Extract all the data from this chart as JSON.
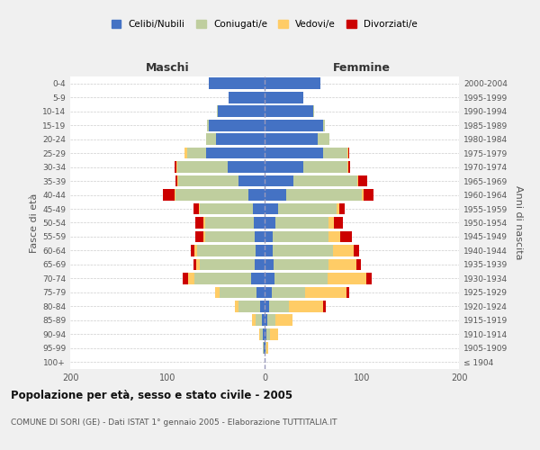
{
  "age_groups": [
    "100+",
    "95-99",
    "90-94",
    "85-89",
    "80-84",
    "75-79",
    "70-74",
    "65-69",
    "60-64",
    "55-59",
    "50-54",
    "45-49",
    "40-44",
    "35-39",
    "30-34",
    "25-29",
    "20-24",
    "15-19",
    "10-14",
    "5-9",
    "0-4"
  ],
  "birth_years": [
    "≤ 1904",
    "1905-1909",
    "1910-1914",
    "1915-1919",
    "1920-1924",
    "1925-1929",
    "1930-1934",
    "1935-1939",
    "1940-1944",
    "1945-1949",
    "1950-1954",
    "1955-1959",
    "1960-1964",
    "1965-1969",
    "1970-1974",
    "1975-1979",
    "1980-1984",
    "1985-1989",
    "1990-1994",
    "1995-1999",
    "2000-2004"
  ],
  "maschi": {
    "celibi": [
      0,
      1,
      2,
      3,
      5,
      8,
      14,
      10,
      9,
      10,
      11,
      12,
      17,
      27,
      38,
      60,
      50,
      57,
      48,
      37,
      57
    ],
    "coniugati": [
      0,
      1,
      3,
      6,
      22,
      38,
      58,
      57,
      60,
      51,
      50,
      55,
      75,
      62,
      52,
      20,
      10,
      2,
      1,
      0,
      0
    ],
    "vedovi": [
      0,
      0,
      1,
      4,
      4,
      5,
      7,
      3,
      3,
      2,
      2,
      1,
      1,
      1,
      1,
      2,
      0,
      0,
      0,
      0,
      0
    ],
    "divorziati": [
      0,
      0,
      0,
      0,
      0,
      0,
      5,
      3,
      4,
      8,
      8,
      5,
      12,
      2,
      2,
      0,
      0,
      0,
      0,
      0,
      0
    ]
  },
  "femmine": {
    "nubili": [
      0,
      1,
      2,
      3,
      5,
      7,
      10,
      9,
      8,
      8,
      11,
      14,
      22,
      30,
      40,
      60,
      55,
      60,
      50,
      40,
      57
    ],
    "coniugate": [
      0,
      1,
      4,
      8,
      20,
      35,
      55,
      57,
      62,
      58,
      55,
      60,
      78,
      65,
      45,
      25,
      12,
      2,
      1,
      0,
      0
    ],
    "vedove": [
      0,
      2,
      8,
      18,
      35,
      42,
      40,
      28,
      22,
      12,
      5,
      3,
      2,
      1,
      1,
      1,
      0,
      0,
      0,
      0,
      0
    ],
    "divorziate": [
      0,
      0,
      0,
      0,
      3,
      3,
      5,
      5,
      5,
      12,
      10,
      5,
      10,
      10,
      2,
      1,
      0,
      0,
      0,
      0,
      0
    ]
  },
  "colors": {
    "celibi": "#4472C4",
    "coniugati": "#BFCE9E",
    "vedovi": "#FFCC66",
    "divorziati": "#CC0000"
  },
  "title": "Popolazione per età, sesso e stato civile - 2005",
  "subtitle": "COMUNE DI SORI (GE) - Dati ISTAT 1° gennaio 2005 - Elaborazione TUTTITALIA.IT",
  "ylabel_left": "Fasce di età",
  "ylabel_right": "Anni di nascita",
  "xlabel_left": "Maschi",
  "xlabel_right": "Femmine",
  "xlim": 200,
  "bg_color": "#f0f0f0",
  "plot_bg": "#ffffff"
}
